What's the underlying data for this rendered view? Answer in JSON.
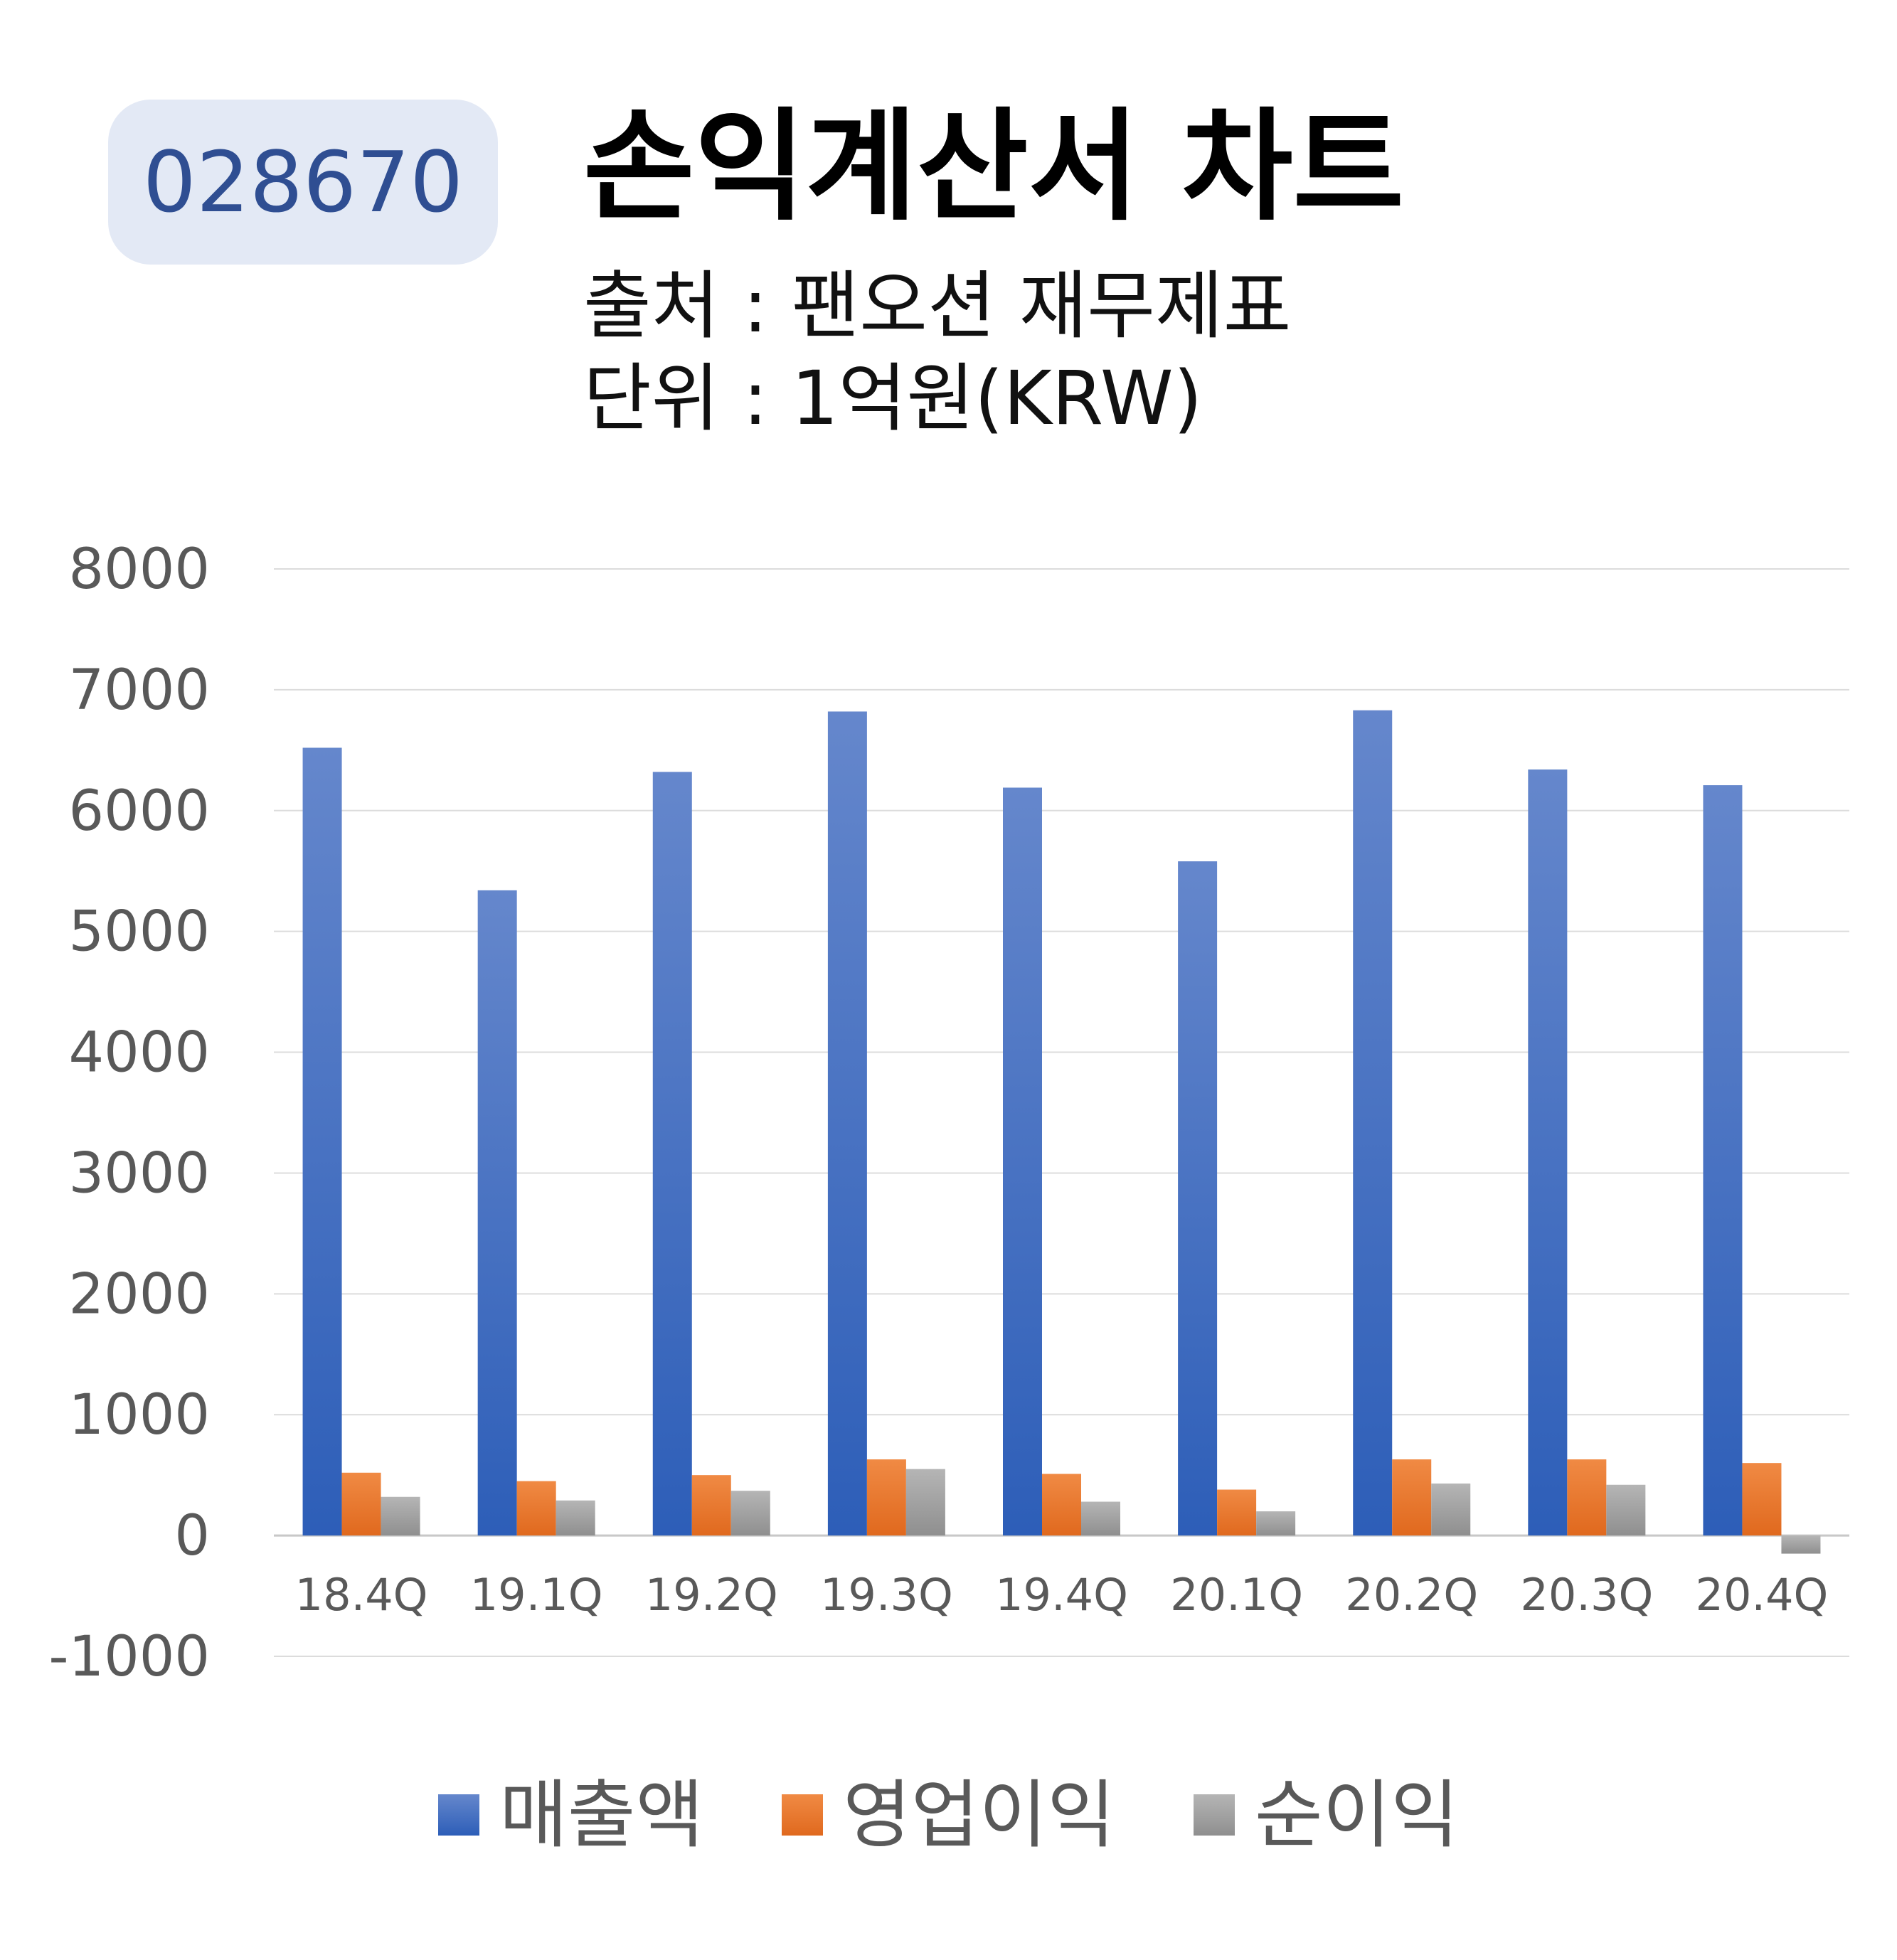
{
  "badge": {
    "code": "028670"
  },
  "header": {
    "title": "손익계산서 차트",
    "source": "출처 : 팬오션 재무제표",
    "unit": "단위 : 1억원(KRW)"
  },
  "colors": {
    "revenue": "#4472c4",
    "operating": "#ed7d31",
    "net": "#a5a5a5"
  },
  "chart_data": {
    "type": "bar",
    "categories": [
      "18.4Q",
      "19.1Q",
      "19.2Q",
      "19.3Q",
      "19.4Q",
      "20.1Q",
      "20.2Q",
      "20.3Q",
      "20.4Q"
    ],
    "series": [
      {
        "name": "매출액",
        "values": [
          6520,
          5340,
          6320,
          6820,
          6190,
          5580,
          6830,
          6340,
          6210
        ]
      },
      {
        "name": "영업이익",
        "values": [
          520,
          450,
          500,
          630,
          510,
          380,
          630,
          630,
          600
        ]
      },
      {
        "name": "순이익",
        "values": [
          320,
          290,
          370,
          550,
          280,
          200,
          430,
          420,
          -150
        ]
      }
    ],
    "ylim": [
      -1000,
      8000
    ],
    "yticks": [
      8000,
      7000,
      6000,
      5000,
      4000,
      3000,
      2000,
      1000,
      0,
      -1000
    ],
    "grid": true,
    "legend": "bottom"
  }
}
